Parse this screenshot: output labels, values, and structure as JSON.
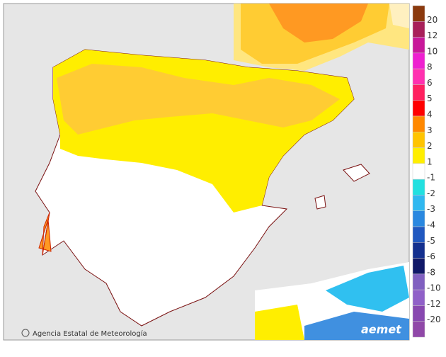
{
  "map": {
    "legend": {
      "labels": [
        "20",
        "12",
        "10",
        "8",
        "6",
        "5",
        "4",
        "3",
        "2",
        "1",
        "-1",
        "-2",
        "-3",
        "-4",
        "-5",
        "-6",
        "-8",
        "-10",
        "-12",
        "-20"
      ],
      "colors": [
        "#8b3a0e",
        "#a8205a",
        "#c8189a",
        "#ee20d0",
        "#ff30b0",
        "#ff2060",
        "#ff0000",
        "#ff8800",
        "#ffc400",
        "#ffee00",
        "#ffffff",
        "#22e0e0",
        "#30b8f0",
        "#2a88e0",
        "#2058c0",
        "#14308f",
        "#101868",
        "#8060c0",
        "#9060c8",
        "#8848b0",
        "#9048a8"
      ]
    },
    "credit": "Agencia Estatal de Meteorología",
    "logo": "aemet"
  }
}
